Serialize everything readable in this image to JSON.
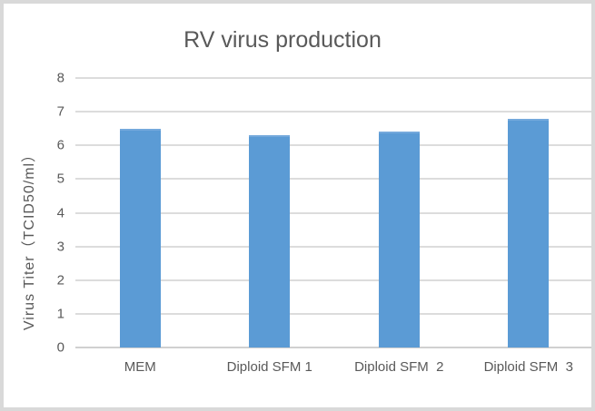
{
  "window": {
    "background_color": "#ffffff",
    "border_color": "#d9d9d9"
  },
  "colors": {
    "bar_fill": "#5b9bd5",
    "bar_top_highlight": "#74a9dc",
    "gridline": "#dcdcdc",
    "axis_line": "#d0d0d0",
    "text": "#595959"
  },
  "chart_data": {
    "type": "bar",
    "title": "RV virus production",
    "categories": [
      "MEM",
      "Diploid SFM 1",
      "Diploid SFM  2",
      "Diploid SFM  3"
    ],
    "values": [
      6.5,
      6.3,
      6.4,
      6.8
    ],
    "xlabel": "",
    "ylabel": "Virus Titer（TCID50/ml）",
    "ylim": [
      0,
      8
    ],
    "ytick_step": 1,
    "ytick_labels": [
      "0",
      "1",
      "2",
      "3",
      "4",
      "5",
      "6",
      "7",
      "8"
    ],
    "grid": true,
    "legend": false,
    "legend_position": "none"
  }
}
